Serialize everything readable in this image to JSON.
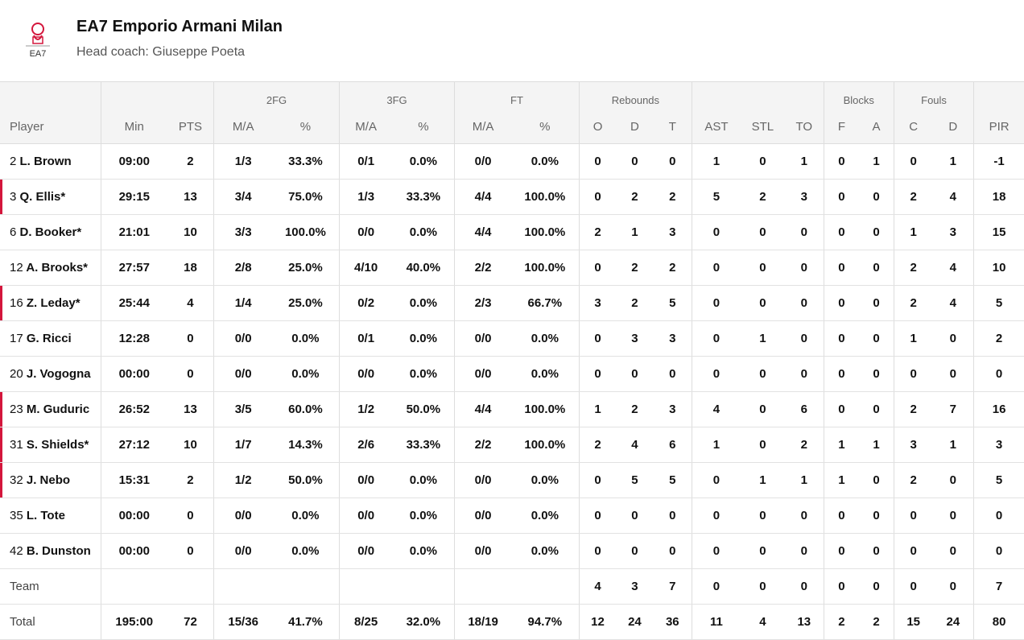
{
  "team": {
    "name": "EA7 Emporio Armani Milan",
    "coach": "Head coach: Giuseppe Poeta",
    "logo_text": "EA7",
    "logo_color": "#d4163c"
  },
  "groups": {
    "fg2": "2FG",
    "fg3": "3FG",
    "ft": "FT",
    "rebounds": "Rebounds",
    "blocks": "Blocks",
    "fouls": "Fouls"
  },
  "columns": [
    "Player",
    "Min",
    "PTS",
    "M/A",
    "%",
    "M/A",
    "%",
    "M/A",
    "%",
    "O",
    "D",
    "T",
    "AST",
    "STL",
    "TO",
    "F",
    "A",
    "C",
    "D",
    "PIR"
  ],
  "players": [
    {
      "num": "2",
      "name": "L. Brown",
      "starter": false,
      "stats": [
        "09:00",
        "2",
        "1/3",
        "33.3%",
        "0/1",
        "0.0%",
        "0/0",
        "0.0%",
        "0",
        "0",
        "0",
        "1",
        "0",
        "1",
        "0",
        "1",
        "0",
        "1",
        "-1"
      ]
    },
    {
      "num": "3",
      "name": "Q. Ellis*",
      "starter": true,
      "stats": [
        "29:15",
        "13",
        "3/4",
        "75.0%",
        "1/3",
        "33.3%",
        "4/4",
        "100.0%",
        "0",
        "2",
        "2",
        "5",
        "2",
        "3",
        "0",
        "0",
        "2",
        "4",
        "18"
      ]
    },
    {
      "num": "6",
      "name": "D. Booker*",
      "starter": false,
      "stats": [
        "21:01",
        "10",
        "3/3",
        "100.0%",
        "0/0",
        "0.0%",
        "4/4",
        "100.0%",
        "2",
        "1",
        "3",
        "0",
        "0",
        "0",
        "0",
        "0",
        "1",
        "3",
        "15"
      ]
    },
    {
      "num": "12",
      "name": "A. Brooks*",
      "starter": false,
      "stats": [
        "27:57",
        "18",
        "2/8",
        "25.0%",
        "4/10",
        "40.0%",
        "2/2",
        "100.0%",
        "0",
        "2",
        "2",
        "0",
        "0",
        "0",
        "0",
        "0",
        "2",
        "4",
        "10"
      ]
    },
    {
      "num": "16",
      "name": "Z. Leday*",
      "starter": true,
      "stats": [
        "25:44",
        "4",
        "1/4",
        "25.0%",
        "0/2",
        "0.0%",
        "2/3",
        "66.7%",
        "3",
        "2",
        "5",
        "0",
        "0",
        "0",
        "0",
        "0",
        "2",
        "4",
        "5"
      ]
    },
    {
      "num": "17",
      "name": "G. Ricci",
      "starter": false,
      "stats": [
        "12:28",
        "0",
        "0/0",
        "0.0%",
        "0/1",
        "0.0%",
        "0/0",
        "0.0%",
        "0",
        "3",
        "3",
        "0",
        "1",
        "0",
        "0",
        "0",
        "1",
        "0",
        "2"
      ]
    },
    {
      "num": "20",
      "name": "J. Vogogna",
      "starter": false,
      "stats": [
        "00:00",
        "0",
        "0/0",
        "0.0%",
        "0/0",
        "0.0%",
        "0/0",
        "0.0%",
        "0",
        "0",
        "0",
        "0",
        "0",
        "0",
        "0",
        "0",
        "0",
        "0",
        "0"
      ]
    },
    {
      "num": "23",
      "name": "M. Guduric",
      "starter": true,
      "stats": [
        "26:52",
        "13",
        "3/5",
        "60.0%",
        "1/2",
        "50.0%",
        "4/4",
        "100.0%",
        "1",
        "2",
        "3",
        "4",
        "0",
        "6",
        "0",
        "0",
        "2",
        "7",
        "16"
      ]
    },
    {
      "num": "31",
      "name": "S. Shields*",
      "starter": true,
      "stats": [
        "27:12",
        "10",
        "1/7",
        "14.3%",
        "2/6",
        "33.3%",
        "2/2",
        "100.0%",
        "2",
        "4",
        "6",
        "1",
        "0",
        "2",
        "1",
        "1",
        "3",
        "1",
        "3"
      ]
    },
    {
      "num": "32",
      "name": "J. Nebo",
      "starter": true,
      "stats": [
        "15:31",
        "2",
        "1/2",
        "50.0%",
        "0/0",
        "0.0%",
        "0/0",
        "0.0%",
        "0",
        "5",
        "5",
        "0",
        "1",
        "1",
        "1",
        "0",
        "2",
        "0",
        "5"
      ]
    },
    {
      "num": "35",
      "name": "L. Tote",
      "starter": false,
      "stats": [
        "00:00",
        "0",
        "0/0",
        "0.0%",
        "0/0",
        "0.0%",
        "0/0",
        "0.0%",
        "0",
        "0",
        "0",
        "0",
        "0",
        "0",
        "0",
        "0",
        "0",
        "0",
        "0"
      ]
    },
    {
      "num": "42",
      "name": "B. Dunston",
      "starter": false,
      "stats": [
        "00:00",
        "0",
        "0/0",
        "0.0%",
        "0/0",
        "0.0%",
        "0/0",
        "0.0%",
        "0",
        "0",
        "0",
        "0",
        "0",
        "0",
        "0",
        "0",
        "0",
        "0",
        "0"
      ]
    }
  ],
  "team_row": {
    "label": "Team",
    "stats": [
      "",
      "",
      "",
      "",
      "",
      "",
      "",
      "",
      "4",
      "3",
      "7",
      "0",
      "0",
      "0",
      "0",
      "0",
      "0",
      "0",
      "7"
    ]
  },
  "total_row": {
    "label": "Total",
    "stats": [
      "195:00",
      "72",
      "15/36",
      "41.7%",
      "8/25",
      "32.0%",
      "18/19",
      "94.7%",
      "12",
      "24",
      "36",
      "11",
      "4",
      "13",
      "2",
      "2",
      "15",
      "24",
      "80"
    ]
  }
}
